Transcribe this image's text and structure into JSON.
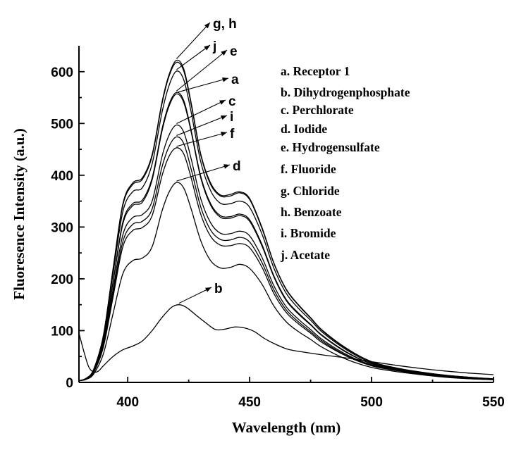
{
  "chart_data": {
    "type": "line",
    "title": "",
    "xlabel": "Wavelength (nm)",
    "ylabel": "Fluoresence Intensity (a.u.)",
    "xlim": [
      380,
      550
    ],
    "ylim": [
      0,
      650
    ],
    "xticks": [
      400,
      450,
      500,
      550
    ],
    "yticks": [
      0,
      100,
      200,
      300,
      400,
      500,
      600
    ],
    "grid": false,
    "legend": {
      "placement": "right",
      "entries": [
        "a. Receptor 1",
        "b. Dihydrogenphosphate",
        "c. Perchlorate",
        "d. Iodide",
        "e. Hydrogensulfate",
        "f. Fluoride",
        "g. Chloride",
        "h. Benzoate",
        "i. Bromide",
        "j. Acetate"
      ]
    },
    "annotations": [
      {
        "label": "g, h",
        "series": "g",
        "x": 420
      },
      {
        "label": "j",
        "series": "j",
        "x": 420
      },
      {
        "label": "e",
        "series": "e",
        "x": 420
      },
      {
        "label": "a",
        "series": "a",
        "x": 420
      },
      {
        "label": "c",
        "series": "c",
        "x": 420
      },
      {
        "label": "i",
        "series": "i",
        "x": 420
      },
      {
        "label": "f",
        "series": "f",
        "x": 420
      },
      {
        "label": "d",
        "series": "d",
        "x": 420
      },
      {
        "label": "b",
        "series": "b",
        "x": 421
      }
    ],
    "series": [
      {
        "name": "g",
        "x": [
          380,
          383,
          386,
          390,
          394,
          398,
          402,
          406,
          410,
          414,
          417,
          420,
          423,
          426,
          430,
          434,
          438,
          442,
          446,
          450,
          455,
          460,
          465,
          470,
          475,
          480,
          490,
          500,
          510,
          520,
          530,
          540,
          550
        ],
        "values": [
          3,
          8,
          25,
          90,
          220,
          345,
          385,
          395,
          440,
          540,
          595,
          622,
          605,
          540,
          440,
          385,
          362,
          363,
          368,
          355,
          300,
          230,
          180,
          150,
          125,
          100,
          65,
          40,
          28,
          20,
          14,
          10,
          7
        ]
      },
      {
        "name": "h",
        "x": [
          380,
          383,
          386,
          390,
          394,
          398,
          402,
          406,
          410,
          414,
          417,
          420,
          423,
          426,
          430,
          434,
          438,
          442,
          446,
          450,
          455,
          460,
          465,
          470,
          475,
          480,
          490,
          500,
          510,
          520,
          530,
          540,
          550
        ],
        "values": [
          3,
          8,
          25,
          90,
          218,
          342,
          382,
          392,
          437,
          537,
          592,
          618,
          601,
          537,
          438,
          382,
          360,
          360,
          366,
          353,
          298,
          229,
          179,
          149,
          124,
          99,
          64,
          40,
          28,
          20,
          14,
          10,
          7
        ]
      },
      {
        "name": "j",
        "x": [
          380,
          383,
          386,
          390,
          394,
          398,
          402,
          406,
          410,
          414,
          417,
          420,
          423,
          426,
          430,
          434,
          438,
          442,
          446,
          450,
          455,
          460,
          465,
          470,
          475,
          480,
          490,
          500,
          510,
          520,
          530,
          540,
          550
        ],
        "values": [
          3,
          8,
          24,
          86,
          210,
          330,
          368,
          376,
          422,
          520,
          574,
          601,
          584,
          522,
          425,
          370,
          346,
          345,
          350,
          338,
          287,
          220,
          172,
          143,
          120,
          96,
          62,
          38,
          27,
          19,
          13,
          9,
          6
        ]
      },
      {
        "name": "e",
        "x": [
          380,
          383,
          386,
          390,
          394,
          398,
          402,
          406,
          410,
          414,
          417,
          420,
          423,
          426,
          430,
          434,
          438,
          442,
          446,
          450,
          455,
          460,
          465,
          470,
          475,
          480,
          490,
          500,
          510,
          520,
          530,
          540,
          550
        ],
        "values": [
          3,
          8,
          23,
          80,
          195,
          310,
          345,
          352,
          395,
          488,
          538,
          560,
          544,
          487,
          397,
          345,
          322,
          320,
          325,
          314,
          267,
          205,
          160,
          134,
          112,
          90,
          58,
          36,
          26,
          18,
          12,
          9,
          6
        ]
      },
      {
        "name": "a",
        "x": [
          380,
          383,
          386,
          390,
          394,
          398,
          402,
          406,
          410,
          414,
          417,
          420,
          423,
          426,
          430,
          434,
          438,
          442,
          446,
          450,
          455,
          460,
          465,
          470,
          475,
          480,
          490,
          500,
          510,
          520,
          530,
          540,
          550
        ],
        "values": [
          3,
          8,
          23,
          79,
          193,
          306,
          341,
          348,
          391,
          484,
          534,
          557,
          540,
          484,
          394,
          342,
          319,
          317,
          322,
          311,
          264,
          203,
          158,
          132,
          111,
          89,
          57,
          36,
          26,
          18,
          12,
          9,
          6
        ]
      },
      {
        "name": "c",
        "x": [
          380,
          383,
          386,
          390,
          394,
          398,
          402,
          406,
          410,
          414,
          417,
          420,
          423,
          426,
          430,
          434,
          438,
          442,
          446,
          450,
          455,
          460,
          465,
          470,
          475,
          480,
          490,
          500,
          510,
          520,
          530,
          540,
          550
        ],
        "values": [
          3,
          7,
          21,
          74,
          180,
          285,
          318,
          324,
          350,
          435,
          478,
          497,
          483,
          432,
          354,
          308,
          288,
          287,
          292,
          283,
          242,
          186,
          146,
          122,
          102,
          82,
          53,
          34,
          25,
          17,
          12,
          8,
          6
        ]
      },
      {
        "name": "i",
        "x": [
          380,
          383,
          386,
          390,
          394,
          398,
          402,
          406,
          410,
          414,
          417,
          420,
          423,
          426,
          430,
          434,
          438,
          442,
          446,
          450,
          455,
          460,
          465,
          470,
          475,
          480,
          490,
          500,
          510,
          520,
          530,
          540,
          550
        ],
        "values": [
          3,
          7,
          20,
          71,
          172,
          272,
          305,
          311,
          335,
          415,
          456,
          474,
          461,
          412,
          338,
          294,
          276,
          275,
          280,
          271,
          232,
          178,
          140,
          117,
          98,
          79,
          51,
          33,
          24,
          17,
          11,
          8,
          6
        ]
      },
      {
        "name": "f",
        "x": [
          380,
          383,
          386,
          390,
          394,
          398,
          402,
          406,
          410,
          414,
          417,
          420,
          423,
          426,
          430,
          434,
          438,
          442,
          446,
          450,
          455,
          460,
          465,
          470,
          475,
          480,
          490,
          500,
          510,
          520,
          530,
          540,
          550
        ],
        "values": [
          3,
          7,
          19,
          68,
          165,
          262,
          293,
          299,
          322,
          398,
          437,
          453,
          441,
          395,
          324,
          282,
          265,
          264,
          268,
          260,
          223,
          171,
          135,
          113,
          95,
          76,
          50,
          32,
          23,
          16,
          11,
          8,
          6
        ]
      },
      {
        "name": "d",
        "x": [
          380,
          383,
          386,
          390,
          394,
          398,
          402,
          406,
          410,
          414,
          417,
          420,
          423,
          426,
          430,
          434,
          438,
          442,
          446,
          450,
          455,
          460,
          465,
          470,
          475,
          480,
          490,
          500,
          510,
          520,
          530,
          540,
          550
        ],
        "values": [
          3,
          6,
          16,
          55,
          133,
          210,
          235,
          240,
          262,
          330,
          368,
          386,
          375,
          335,
          273,
          235,
          221,
          222,
          228,
          220,
          190,
          147,
          117,
          98,
          83,
          67,
          44,
          29,
          21,
          15,
          10,
          7,
          5
        ]
      },
      {
        "name": "b",
        "x": [
          380,
          382,
          384,
          386,
          388,
          390,
          394,
          398,
          402,
          406,
          410,
          414,
          418,
          421,
          424,
          428,
          432,
          436,
          440,
          444,
          448,
          452,
          456,
          460,
          465,
          470,
          480,
          490,
          500,
          510,
          520,
          530,
          540,
          550
        ],
        "values": [
          95,
          60,
          30,
          20,
          22,
          32,
          50,
          63,
          70,
          80,
          100,
          125,
          145,
          150,
          145,
          130,
          115,
          102,
          103,
          107,
          105,
          98,
          85,
          75,
          65,
          60,
          53,
          47,
          40,
          33,
          27,
          22,
          18,
          15
        ]
      }
    ]
  }
}
